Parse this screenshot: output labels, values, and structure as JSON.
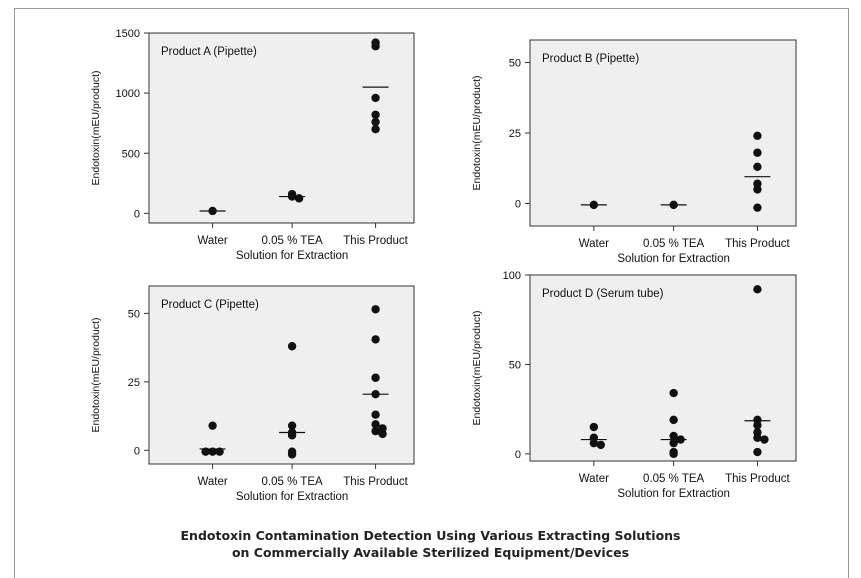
{
  "figure": {
    "caption_line1": "Endotoxin Contamination Detection Using Various Extracting Solutions",
    "caption_line2": "on Commercially Available Sterilized Equipment/Devices"
  },
  "colors": {
    "panel_bg": "#efefef",
    "axis": "#333333",
    "point": "#111111",
    "frame": "#9a9a9a"
  },
  "chart_data": [
    {
      "type": "scatter",
      "title": "Product A (Pipette)",
      "xlabel": "Solution for Extraction",
      "ylabel": "Endotoxin(mEU/product)",
      "categories": [
        "Water",
        "0.05 % TEA",
        "This Product"
      ],
      "ylim": [
        -80,
        1500
      ],
      "yticks": [
        0,
        500,
        1000,
        1500
      ],
      "grid": false,
      "points": [
        {
          "category": 0,
          "y": 20
        },
        {
          "category": 1,
          "y": 140
        },
        {
          "category": 1,
          "y": 160
        },
        {
          "category": 1,
          "y": 125
        },
        {
          "category": 2,
          "y": 1420
        },
        {
          "category": 2,
          "y": 1390
        },
        {
          "category": 2,
          "y": 960
        },
        {
          "category": 2,
          "y": 820
        },
        {
          "category": 2,
          "y": 760
        },
        {
          "category": 2,
          "y": 700
        }
      ],
      "means": [
        20,
        140,
        1050
      ]
    },
    {
      "type": "scatter",
      "title": "Product B (Pipette)",
      "xlabel": "Solution for Extraction",
      "ylabel": "Endotoxin(mEU/product)",
      "categories": [
        "Water",
        "0.05 % TEA",
        "This Product"
      ],
      "ylim": [
        -8,
        58
      ],
      "yticks": [
        0,
        25,
        50
      ],
      "grid": false,
      "points": [
        {
          "category": 0,
          "y": -0.5
        },
        {
          "category": 1,
          "y": -0.5
        },
        {
          "category": 2,
          "y": 24
        },
        {
          "category": 2,
          "y": 18
        },
        {
          "category": 2,
          "y": 13
        },
        {
          "category": 2,
          "y": 7
        },
        {
          "category": 2,
          "y": 5
        },
        {
          "category": 2,
          "y": -1.5
        }
      ],
      "means": [
        -0.5,
        -0.5,
        9.5
      ]
    },
    {
      "type": "scatter",
      "title": "Product C (Pipette)",
      "xlabel": "Solution for Extraction",
      "ylabel": "Endotoxin(mEU/product)",
      "categories": [
        "Water",
        "0.05 % TEA",
        "This Product"
      ],
      "ylim": [
        -5,
        60
      ],
      "yticks": [
        0,
        25,
        50
      ],
      "grid": false,
      "points": [
        {
          "category": 0,
          "y": 9
        },
        {
          "category": 0,
          "y": -0.5
        },
        {
          "category": 0,
          "y": -0.5
        },
        {
          "category": 0,
          "y": -0.5
        },
        {
          "category": 1,
          "y": 38
        },
        {
          "category": 1,
          "y": 9
        },
        {
          "category": 1,
          "y": 6.5
        },
        {
          "category": 1,
          "y": 5.5
        },
        {
          "category": 1,
          "y": -0.5
        },
        {
          "category": 1,
          "y": -1.5
        },
        {
          "category": 2,
          "y": 51.5
        },
        {
          "category": 2,
          "y": 40.5
        },
        {
          "category": 2,
          "y": 26.5
        },
        {
          "category": 2,
          "y": 20.5
        },
        {
          "category": 2,
          "y": 13
        },
        {
          "category": 2,
          "y": 9.5
        },
        {
          "category": 2,
          "y": 8
        },
        {
          "category": 2,
          "y": 7
        },
        {
          "category": 2,
          "y": 6
        }
      ],
      "means": [
        0.5,
        6.5,
        20.5
      ]
    },
    {
      "type": "scatter",
      "title": "Product D (Serum tube)",
      "xlabel": "Solution for Extraction",
      "ylabel": "Endotoxin(mEU/product)",
      "categories": [
        "Water",
        "0.05 % TEA",
        "This Product"
      ],
      "ylim": [
        -4,
        100
      ],
      "yticks": [
        0,
        50,
        100
      ],
      "grid": false,
      "points": [
        {
          "category": 0,
          "y": 15
        },
        {
          "category": 0,
          "y": 9
        },
        {
          "category": 0,
          "y": 6
        },
        {
          "category": 0,
          "y": 5
        },
        {
          "category": 1,
          "y": 34
        },
        {
          "category": 1,
          "y": 19
        },
        {
          "category": 1,
          "y": 10
        },
        {
          "category": 1,
          "y": 8
        },
        {
          "category": 1,
          "y": 6
        },
        {
          "category": 1,
          "y": 1
        },
        {
          "category": 1,
          "y": 0
        },
        {
          "category": 2,
          "y": 92
        },
        {
          "category": 2,
          "y": 19
        },
        {
          "category": 2,
          "y": 16
        },
        {
          "category": 2,
          "y": 12
        },
        {
          "category": 2,
          "y": 9
        },
        {
          "category": 2,
          "y": 8
        },
        {
          "category": 2,
          "y": 1
        }
      ],
      "means": [
        8,
        8,
        18.5
      ]
    }
  ]
}
